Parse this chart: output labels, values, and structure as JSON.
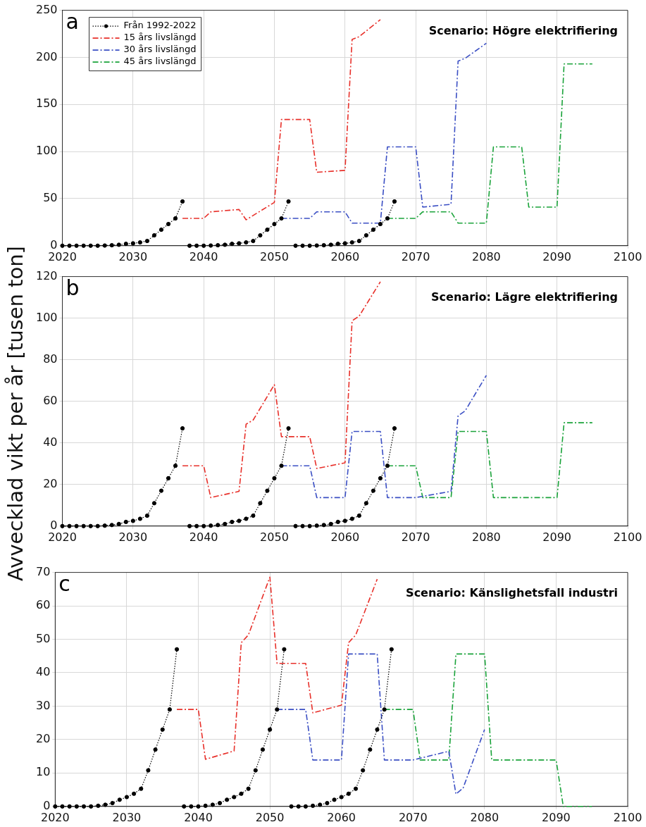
{
  "chart_data": [
    {
      "type": "line",
      "title": "Scenario: Högre elektrifiering",
      "annotations": [
        "a"
      ],
      "xlim": [
        2020,
        2100
      ],
      "xticks": [
        2020,
        2030,
        2040,
        2050,
        2060,
        2070,
        2080,
        2090,
        2100
      ],
      "ylim": [
        0,
        250
      ],
      "yticks": [
        0,
        50,
        100,
        150,
        200,
        250
      ],
      "grid": true,
      "legend": "top left",
      "series": [
        {
          "name": "Från 1992-2022",
          "color": "#000000",
          "marker": "circle",
          "line_style": "dotted",
          "x": [
            2020,
            2021,
            2022,
            2023,
            2024,
            2025,
            2026,
            2027,
            2028,
            2029,
            2030,
            2031,
            2032,
            2033,
            2034,
            2035,
            2036,
            2037
          ],
          "values": [
            0,
            0,
            0,
            0,
            0,
            0,
            0.2,
            0.5,
            1,
            2,
            2.5,
            3.5,
            5,
            11,
            17,
            23,
            29,
            47
          ]
        },
        {
          "color": "#000000",
          "marker": "circle",
          "line_style": "dotted",
          "x": [
            2038,
            2039,
            2040,
            2041,
            2042,
            2043,
            2044,
            2045,
            2046,
            2047,
            2048,
            2049,
            2050,
            2051,
            2052
          ],
          "values": [
            0,
            0,
            0,
            0.2,
            0.5,
            1,
            2,
            2.5,
            3.5,
            5,
            11,
            17,
            23,
            29,
            47
          ]
        },
        {
          "color": "#000000",
          "marker": "circle",
          "line_style": "dotted",
          "x": [
            2053,
            2054,
            2055,
            2056,
            2057,
            2058,
            2059,
            2060,
            2061,
            2062,
            2063,
            2064,
            2065,
            2066,
            2067
          ],
          "values": [
            0,
            0,
            0,
            0.2,
            0.5,
            1,
            2,
            2.5,
            3.5,
            5,
            11,
            17,
            23,
            29,
            47
          ]
        },
        {
          "name": "15 års livslängd",
          "color": "#e8302a",
          "line_style": "dashed",
          "x": [
            2037,
            2040,
            2041,
            2045,
            2046,
            2050,
            2051,
            2055,
            2056,
            2060,
            2061,
            2062,
            2065
          ],
          "values": [
            29,
            29,
            36,
            38.5,
            27.5,
            46,
            134,
            134,
            78,
            80,
            219,
            222,
            240
          ]
        },
        {
          "name": "30 års livslängd",
          "color": "#3b4fc4",
          "line_style": "dashed",
          "x": [
            2051,
            2055,
            2056,
            2060,
            2061,
            2065,
            2066,
            2070,
            2071,
            2075,
            2076,
            2077,
            2080
          ],
          "values": [
            29,
            29,
            36,
            36,
            24,
            24,
            105,
            105,
            41,
            44,
            196,
            199,
            215
          ]
        },
        {
          "name": "45 års livslängd",
          "color": "#1aa33a",
          "line_style": "dashed",
          "x": [
            2066,
            2070,
            2071,
            2075,
            2076,
            2080,
            2081,
            2085,
            2086,
            2090,
            2091,
            2095
          ],
          "values": [
            29,
            29,
            36,
            36,
            24,
            24,
            105,
            105,
            41,
            41,
            193,
            193
          ]
        }
      ]
    },
    {
      "type": "line",
      "title": "Scenario: Lägre elektrifiering",
      "ylabel": "Avvecklad vikt per år [tusen ton]",
      "annotations": [
        "b"
      ],
      "xlim": [
        2020,
        2100
      ],
      "xticks": [
        2020,
        2030,
        2040,
        2050,
        2060,
        2070,
        2080,
        2090,
        2100
      ],
      "ylim": [
        0,
        120
      ],
      "yticks": [
        0,
        20,
        40,
        60,
        80,
        100,
        120
      ],
      "grid": true,
      "series": [
        {
          "color": "#000000",
          "marker": "circle",
          "line_style": "dotted",
          "x": [
            2020,
            2021,
            2022,
            2023,
            2024,
            2025,
            2026,
            2027,
            2028,
            2029,
            2030,
            2031,
            2032,
            2033,
            2034,
            2035,
            2036,
            2037
          ],
          "values": [
            0,
            0,
            0,
            0,
            0,
            0,
            0.2,
            0.5,
            1,
            2,
            2.5,
            3.5,
            5,
            11,
            17,
            23,
            29,
            47
          ]
        },
        {
          "color": "#000000",
          "marker": "circle",
          "line_style": "dotted",
          "x": [
            2038,
            2039,
            2040,
            2041,
            2042,
            2043,
            2044,
            2045,
            2046,
            2047,
            2048,
            2049,
            2050,
            2051,
            2052
          ],
          "values": [
            0,
            0,
            0,
            0.2,
            0.5,
            1,
            2,
            2.5,
            3.5,
            5,
            11,
            17,
            23,
            29,
            47
          ]
        },
        {
          "color": "#000000",
          "marker": "circle",
          "line_style": "dotted",
          "x": [
            2053,
            2054,
            2055,
            2056,
            2057,
            2058,
            2059,
            2060,
            2061,
            2062,
            2063,
            2064,
            2065,
            2066,
            2067
          ],
          "values": [
            0,
            0,
            0,
            0.2,
            0.5,
            1,
            2,
            2.5,
            3.5,
            5,
            11,
            17,
            23,
            29,
            47
          ]
        },
        {
          "color": "#e8302a",
          "line_style": "dashed",
          "x": [
            2037,
            2040,
            2041,
            2045,
            2046,
            2047,
            2050,
            2051,
            2055,
            2056,
            2060,
            2061,
            2062,
            2065
          ],
          "values": [
            29,
            29,
            13.7,
            16.7,
            49,
            51,
            68,
            43,
            43,
            27.7,
            30.4,
            98.7,
            101,
            117.5
          ]
        },
        {
          "color": "#3b4fc4",
          "line_style": "dashed",
          "x": [
            2051,
            2055,
            2056,
            2060,
            2061,
            2065,
            2066,
            2070,
            2075,
            2076,
            2077,
            2080
          ],
          "values": [
            29,
            29,
            13.7,
            13.7,
            45.5,
            45.5,
            13.7,
            13.7,
            16.7,
            53,
            55.4,
            72.5
          ]
        },
        {
          "color": "#1aa33a",
          "line_style": "dashed",
          "x": [
            2066,
            2070,
            2071,
            2075,
            2076,
            2080,
            2081,
            2090,
            2091,
            2095
          ],
          "values": [
            29,
            29,
            13.7,
            13.7,
            45.5,
            45.5,
            13.7,
            13.7,
            49.7,
            49.7
          ]
        }
      ]
    },
    {
      "type": "line",
      "title": "Scenario: Känslighetsfall industri",
      "annotations": [
        "c"
      ],
      "xlim": [
        2020,
        2100
      ],
      "xticks": [
        2020,
        2030,
        2040,
        2050,
        2060,
        2070,
        2080,
        2090,
        2100
      ],
      "ylim": [
        0,
        70
      ],
      "yticks": [
        0,
        10,
        20,
        30,
        40,
        50,
        60,
        70
      ],
      "grid": true,
      "series": [
        {
          "color": "#000000",
          "marker": "circle",
          "line_style": "dotted",
          "x": [
            2020,
            2021,
            2022,
            2023,
            2024,
            2025,
            2026,
            2027,
            2028,
            2029,
            2030,
            2031,
            2032,
            2033,
            2034,
            2035,
            2036,
            2037
          ],
          "values": [
            0,
            0,
            0,
            0,
            0,
            0,
            0.2,
            0.5,
            1,
            2,
            2.8,
            3.8,
            5.3,
            10.8,
            17,
            23,
            29,
            47
          ]
        },
        {
          "color": "#000000",
          "marker": "circle",
          "line_style": "dotted",
          "x": [
            2038,
            2039,
            2040,
            2041,
            2042,
            2043,
            2044,
            2045,
            2046,
            2047,
            2048,
            2049,
            2050,
            2051,
            2052
          ],
          "values": [
            0,
            0,
            0,
            0.2,
            0.5,
            1,
            2,
            2.8,
            3.8,
            5.3,
            10.8,
            17,
            23,
            29,
            47
          ]
        },
        {
          "color": "#000000",
          "marker": "circle",
          "line_style": "dotted",
          "x": [
            2053,
            2054,
            2055,
            2056,
            2057,
            2058,
            2059,
            2060,
            2061,
            2062,
            2063,
            2064,
            2065,
            2066,
            2067
          ],
          "values": [
            0,
            0,
            0,
            0.2,
            0.5,
            1,
            2,
            2.8,
            3.8,
            5.3,
            10.8,
            17,
            23,
            29,
            47
          ]
        },
        {
          "color": "#e8302a",
          "line_style": "dashed",
          "x": [
            2037,
            2040,
            2041,
            2045,
            2046,
            2047,
            2050,
            2051,
            2055,
            2056,
            2060,
            2061,
            2062,
            2065
          ],
          "values": [
            29,
            29,
            14.1,
            16.6,
            49,
            51.3,
            68.6,
            42.8,
            42.8,
            28,
            30.3,
            49,
            51.3,
            68
          ]
        },
        {
          "color": "#3b4fc4",
          "line_style": "dashed",
          "x": [
            2051,
            2055,
            2056,
            2060,
            2061,
            2065,
            2066,
            2070,
            2075,
            2076,
            2077,
            2080
          ],
          "values": [
            29,
            29,
            13.9,
            13.9,
            45.6,
            45.6,
            13.9,
            13.9,
            16.5,
            3.7,
            5.5,
            23
          ]
        },
        {
          "color": "#1aa33a",
          "line_style": "dashed",
          "x": [
            2066,
            2070,
            2071,
            2075,
            2076,
            2080,
            2081,
            2090,
            2091,
            2095
          ],
          "values": [
            29,
            29,
            13.9,
            13.9,
            45.6,
            45.6,
            13.9,
            13.9,
            0,
            0
          ]
        }
      ]
    }
  ]
}
